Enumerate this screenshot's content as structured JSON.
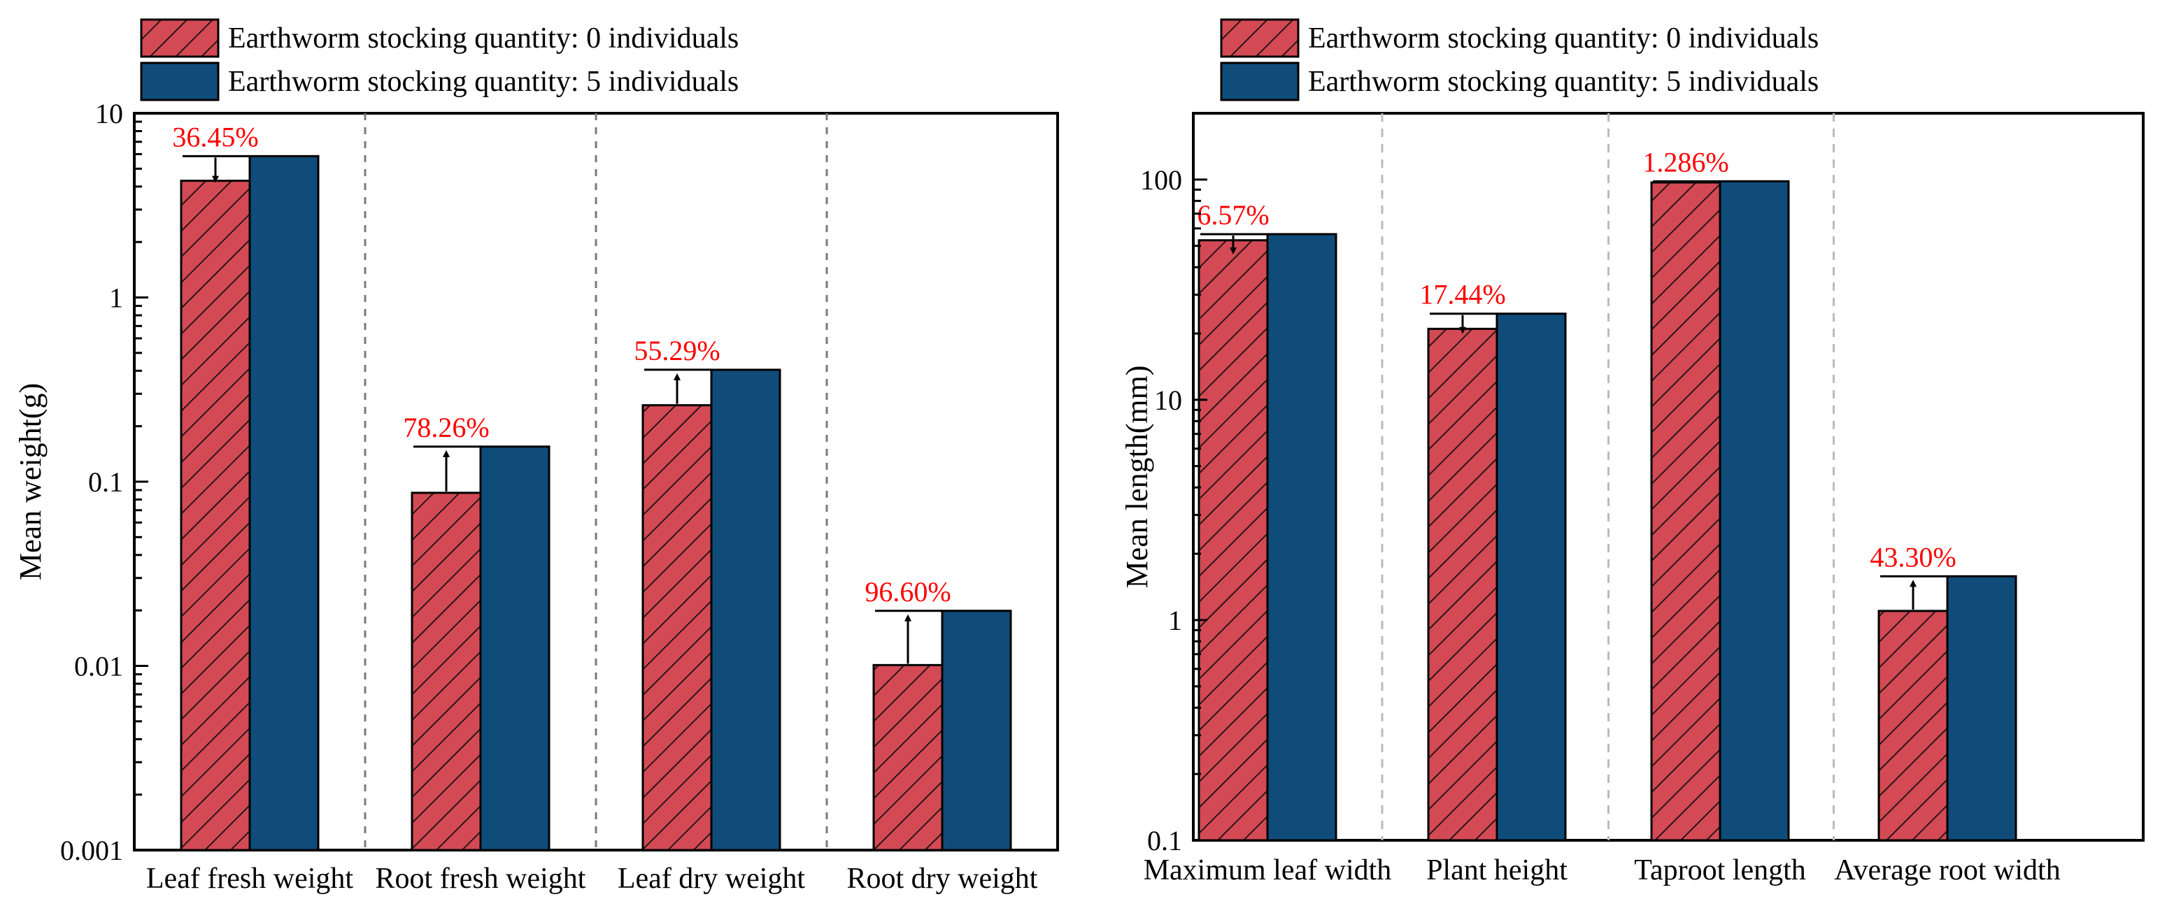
{
  "chart_data": [
    {
      "type": "bar",
      "scale": "log",
      "title": "",
      "xlabel": "",
      "ylabel": "Mean weight(g)",
      "ylim": [
        0.001,
        10
      ],
      "yticks": [
        "0.001",
        "0.01",
        "0.1",
        "1",
        "10"
      ],
      "categories": [
        "Leaf fresh weight",
        "Root fresh weight",
        "Leaf dry weight",
        "Root dry weight"
      ],
      "series": [
        {
          "name": "Earthworm stocking quantity: 0 individuals",
          "values": [
            4.3,
            0.087,
            0.26,
            0.0101
          ]
        },
        {
          "name": "Earthworm stocking quantity: 5 individuals",
          "values": [
            5.85,
            0.155,
            0.405,
            0.0199
          ]
        }
      ],
      "annotations": [
        "36.45%",
        "78.26%",
        "55.29%",
        "96.60%"
      ],
      "annotation_arrows": [
        "down",
        "up",
        "up",
        "up"
      ]
    },
    {
      "type": "bar",
      "scale": "log",
      "title": "",
      "xlabel": "",
      "ylabel": "Mean  length(mm)",
      "ylim": [
        0.1,
        200
      ],
      "yticks": [
        "0.1",
        "1",
        "10",
        "100"
      ],
      "categories": [
        "Maximum leaf width",
        "Plant height",
        "Taproot length",
        "Average root width"
      ],
      "series": [
        {
          "name": "Earthworm stocking quantity: 0 individuals",
          "values": [
            53,
            21,
            97,
            1.1
          ]
        },
        {
          "name": "Earthworm stocking quantity: 5 individuals",
          "values": [
            56.5,
            24.6,
            98.2,
            1.58
          ]
        }
      ],
      "annotations": [
        "6.57%",
        "17.44%",
        "1.286%",
        "43.30%"
      ],
      "annotation_arrows": [
        "down",
        "down",
        "none",
        "up"
      ]
    }
  ],
  "colors": {
    "series0": "#d34a55",
    "series1": "#0f4c7a",
    "annotation": "#ff0000",
    "axis": "#000000",
    "separator": "#888888"
  }
}
